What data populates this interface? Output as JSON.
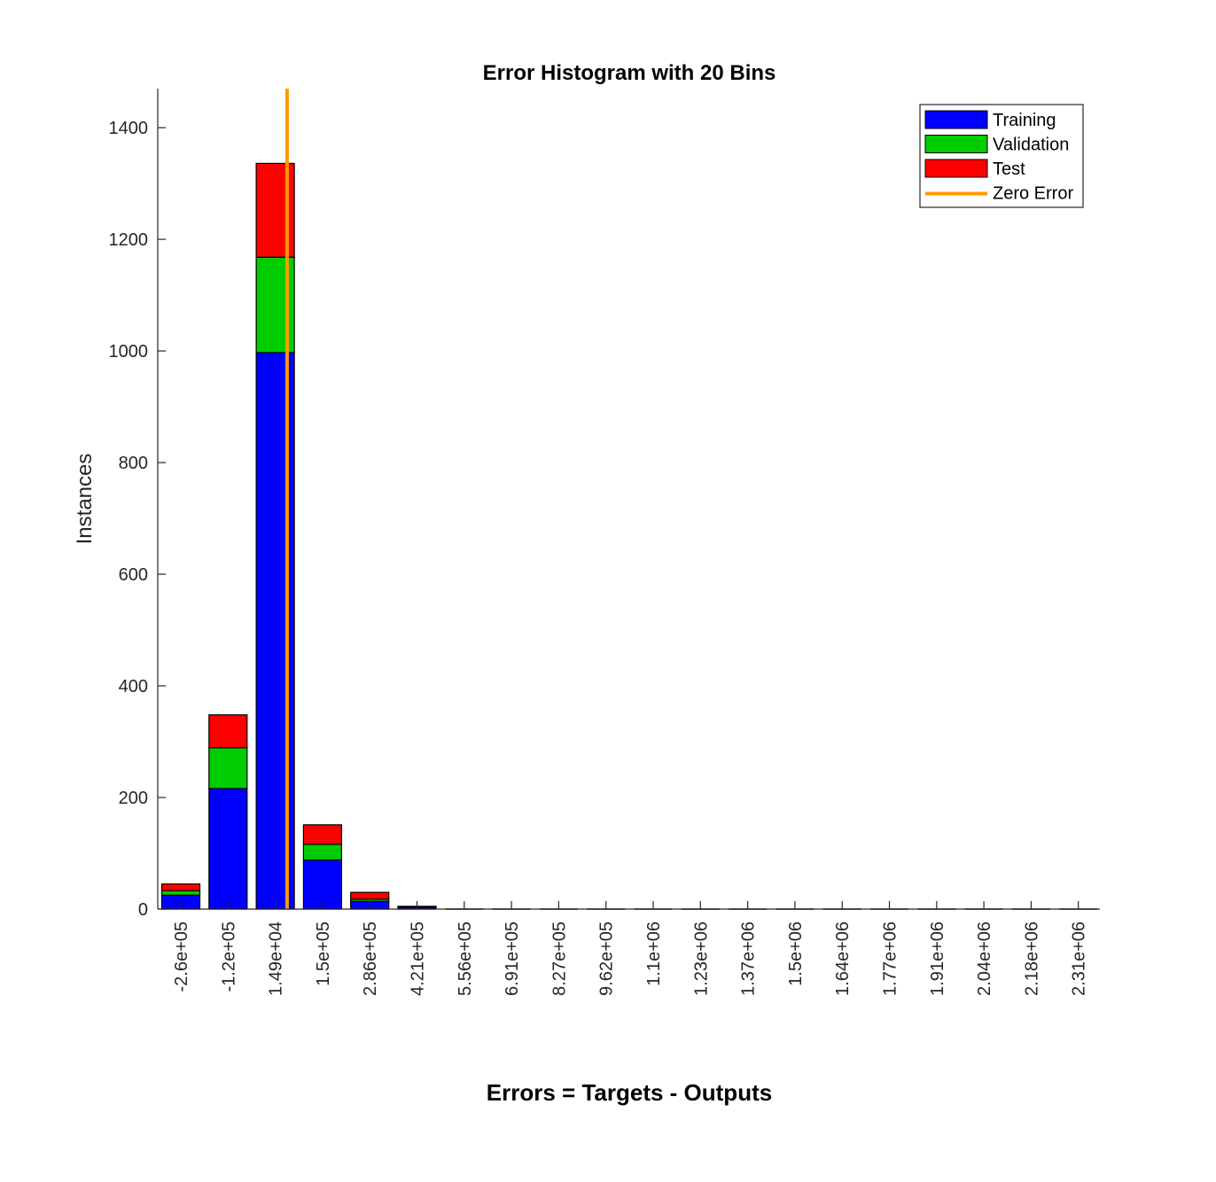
{
  "chart_data": {
    "type": "bar",
    "stacked": true,
    "title": "Error Histogram with 20 Bins",
    "xlabel": "Errors = Targets - Outputs",
    "ylabel": "Instances",
    "ylim": [
      0,
      1470
    ],
    "yticks": [
      0,
      200,
      400,
      600,
      800,
      1000,
      1200,
      1400
    ],
    "categories": [
      "-2.6e+05",
      "-1.2e+05",
      "1.49e+04",
      "1.5e+05",
      "2.86e+05",
      "4.21e+05",
      "5.56e+05",
      "6.91e+05",
      "8.27e+05",
      "9.62e+05",
      "1.1e+06",
      "1.23e+06",
      "1.37e+06",
      "1.5e+06",
      "1.64e+06",
      "1.77e+06",
      "1.91e+06",
      "2.04e+06",
      "2.18e+06",
      "2.31e+06"
    ],
    "series": [
      {
        "name": "Training",
        "color": "#0000ff",
        "values": [
          25,
          216,
          997,
          88,
          14,
          3,
          0,
          0,
          0,
          0,
          0,
          0,
          0,
          0,
          0,
          0,
          0,
          0,
          0,
          0
        ]
      },
      {
        "name": "Validation",
        "color": "#00cc00",
        "values": [
          8,
          73,
          171,
          28,
          4,
          1,
          0,
          0,
          0,
          0,
          0,
          0,
          0,
          0,
          0,
          0,
          0,
          0,
          0,
          0
        ]
      },
      {
        "name": "Test",
        "color": "#ff0000",
        "values": [
          12,
          59,
          168,
          35,
          12,
          1,
          0,
          0,
          0,
          0,
          0,
          0,
          0,
          0,
          0,
          0,
          0,
          0,
          0,
          0
        ]
      }
    ],
    "zero_error": {
      "name": "Zero Error",
      "color": "#ff9900",
      "x_position_bins": 2.25
    },
    "legend_position": "top-right",
    "grid": false
  }
}
